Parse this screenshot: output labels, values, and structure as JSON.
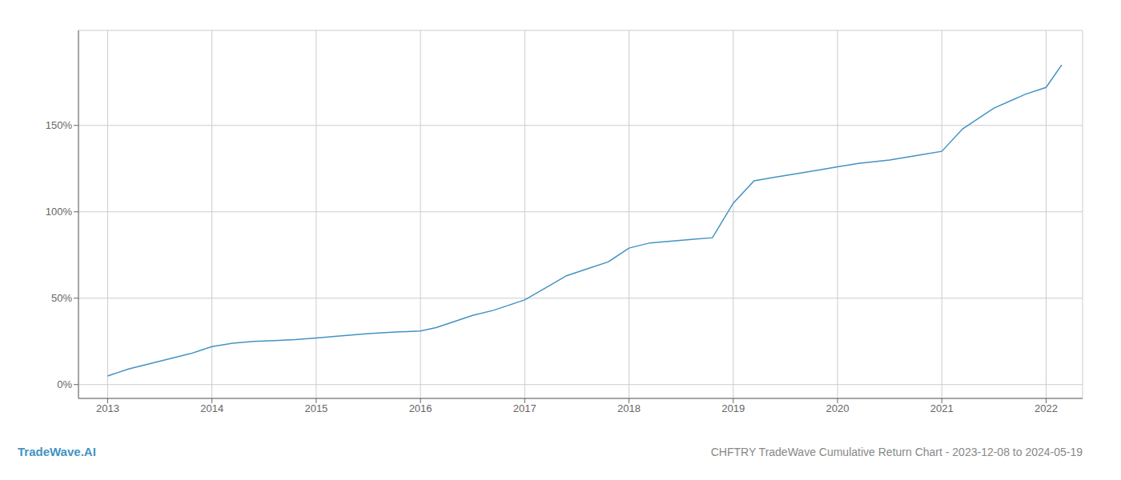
{
  "chart_data": {
    "type": "line",
    "title": "CHFTRY TradeWave Cumulative Return Chart - 2023-12-08 to 2024-05-19",
    "annotations": [
      "TradeWave.AI"
    ],
    "color": "#4393c3",
    "grid": true,
    "x": [
      2013.0,
      2013.05,
      2013.1,
      2013.2,
      2013.4,
      2013.6,
      2013.8,
      2014.0,
      2014.2,
      2014.4,
      2014.6,
      2014.8,
      2015.0,
      2015.2,
      2015.5,
      2015.8,
      2016.0,
      2016.15,
      2016.3,
      2016.5,
      2016.7,
      2016.85,
      2017.0,
      2017.2,
      2017.4,
      2017.6,
      2017.8,
      2018.0,
      2018.2,
      2018.4,
      2018.6,
      2018.8,
      2019.0,
      2019.2,
      2019.4,
      2019.6,
      2019.8,
      2020.0,
      2020.2,
      2020.5,
      2020.8,
      2021.0,
      2021.2,
      2021.5,
      2021.8,
      2022.0,
      2022.15
    ],
    "values": [
      5,
      6,
      7,
      9,
      12,
      15,
      18,
      22,
      24,
      25,
      25.5,
      26,
      27,
      28,
      29.5,
      30.5,
      31,
      33,
      36,
      40,
      43,
      46,
      49,
      56,
      63,
      67,
      71,
      79,
      82,
      83,
      84,
      85,
      105,
      118,
      120,
      122,
      124,
      126,
      128,
      130,
      133,
      135,
      148,
      160,
      168,
      172,
      185
    ],
    "xlim": [
      2012.72,
      2022.35
    ],
    "xticks": [
      2013,
      2014,
      2015,
      2016,
      2017,
      2018,
      2019,
      2020,
      2021,
      2022
    ],
    "ylim": [
      -8,
      205
    ],
    "yticks": [
      {
        "value": 0,
        "label": "0%"
      },
      {
        "value": 50,
        "label": "50%"
      },
      {
        "value": 100,
        "label": "100%"
      },
      {
        "value": 150,
        "label": "150%"
      }
    ]
  }
}
